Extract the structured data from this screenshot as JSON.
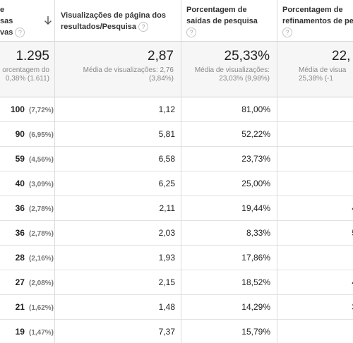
{
  "headers": {
    "col0": [
      "e",
      "sas",
      "vas"
    ],
    "col1": [
      "Visualizações de página dos",
      "resultados/Pesquisa"
    ],
    "col2": [
      "Porcentagem de",
      "saídas de pesquisa"
    ],
    "col3": [
      "Porcentagem de",
      "refinamentos de pe"
    ]
  },
  "help_glyph": "?",
  "totals": {
    "col0": {
      "value": "1.295",
      "sub1": "orcentagem do",
      "sub2": "0,38% (1.611)"
    },
    "col1": {
      "value": "2,87",
      "sub1": "Média de visualizações: 2,76",
      "sub2": "(3,84%)"
    },
    "col2": {
      "value": "25,33%",
      "sub1": "Média de visualizações:",
      "sub2": "23,03% (9,98%)"
    },
    "col3": {
      "value": "22,",
      "sub1": "Média de visua",
      "sub2": "25,38% (-1"
    }
  },
  "rows": [
    {
      "count": "100",
      "pct": "(7,72%)",
      "views": "1,12",
      "exits": "81,00%",
      "ref": ""
    },
    {
      "count": "90",
      "pct": "(6,95%)",
      "views": "5,81",
      "exits": "52,22%",
      "ref": ""
    },
    {
      "count": "59",
      "pct": "(4,56%)",
      "views": "6,58",
      "exits": "23,73%",
      "ref": ""
    },
    {
      "count": "40",
      "pct": "(3,09%)",
      "views": "6,25",
      "exits": "25,00%",
      "ref": ""
    },
    {
      "count": "36",
      "pct": "(2,78%)",
      "views": "2,11",
      "exits": "19,44%",
      "ref": "4"
    },
    {
      "count": "36",
      "pct": "(2,78%)",
      "views": "2,03",
      "exits": "8,33%",
      "ref": "5"
    },
    {
      "count": "28",
      "pct": "(2,16%)",
      "views": "1,93",
      "exits": "17,86%",
      "ref": ""
    },
    {
      "count": "27",
      "pct": "(2,08%)",
      "views": "2,15",
      "exits": "18,52%",
      "ref": "4"
    },
    {
      "count": "21",
      "pct": "(1,62%)",
      "views": "1,48",
      "exits": "14,29%",
      "ref": "3"
    },
    {
      "count": "19",
      "pct": "(1,47%)",
      "views": "7,37",
      "exits": "15,79%",
      "ref": ""
    }
  ],
  "sort_icon": "arrow-down-icon",
  "colors": {
    "divider": "#dcdcdc",
    "totals_bg": "#f6f6f6",
    "muted": "#888888"
  }
}
